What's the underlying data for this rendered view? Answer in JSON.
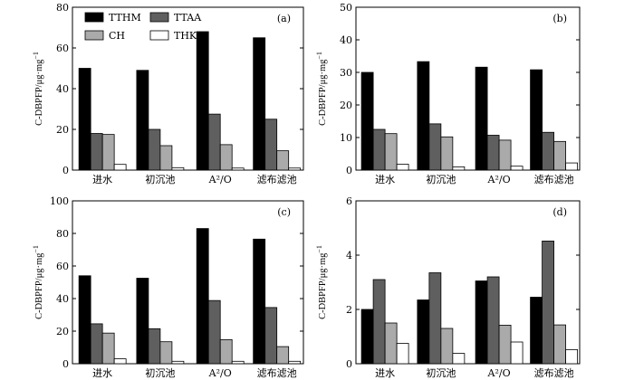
{
  "chart_data": [
    {
      "type": "bar",
      "panel_label": "(a)",
      "ylabel": "C-DBPFP/μg·mg",
      "ylabel_sup": "−1",
      "ylim": [
        0,
        80
      ],
      "yticks": [
        0,
        20,
        40,
        60,
        80
      ],
      "categories": [
        "进水",
        "初沉池",
        "A²/O",
        "滤布滤池"
      ],
      "series": [
        {
          "name": "TTHM",
          "values": [
            50,
            49,
            68,
            65
          ]
        },
        {
          "name": "TTAA",
          "values": [
            18,
            20,
            27.5,
            25
          ]
        },
        {
          "name": "CH",
          "values": [
            17.5,
            12,
            12.5,
            9.5
          ]
        },
        {
          "name": "THK",
          "values": [
            2.8,
            1.2,
            1.0,
            1.0
          ]
        }
      ],
      "legend": [
        "TTHM",
        "TTAA",
        "CH",
        "THK"
      ]
    },
    {
      "type": "bar",
      "panel_label": "(b)",
      "ylabel": "C-DBPFP/μg·mg",
      "ylabel_sup": "−1",
      "ylim": [
        0,
        50
      ],
      "yticks": [
        0,
        10,
        20,
        30,
        40,
        50
      ],
      "categories": [
        "进水",
        "初沉池",
        "A²/O",
        "滤布滤池"
      ],
      "series": [
        {
          "name": "TTHM",
          "values": [
            30,
            33.3,
            31.6,
            30.8
          ]
        },
        {
          "name": "TTAA",
          "values": [
            12.5,
            14.2,
            10.7,
            11.6
          ]
        },
        {
          "name": "CH",
          "values": [
            11.2,
            10.2,
            9.2,
            8.8
          ]
        },
        {
          "name": "THK",
          "values": [
            1.8,
            1.0,
            1.2,
            2.2
          ]
        }
      ]
    },
    {
      "type": "bar",
      "panel_label": "(c)",
      "ylabel": "C-DBPFP/μg·mg",
      "ylabel_sup": "−1",
      "ylim": [
        0,
        100
      ],
      "yticks": [
        0,
        20,
        40,
        60,
        80,
        100
      ],
      "categories": [
        "进水",
        "初沉池",
        "A²/O",
        "滤布滤池"
      ],
      "series": [
        {
          "name": "TTHM",
          "values": [
            54,
            52.5,
            83,
            76.5
          ]
        },
        {
          "name": "TTAA",
          "values": [
            24.5,
            21.5,
            38.8,
            34.5
          ]
        },
        {
          "name": "CH",
          "values": [
            18.8,
            13.5,
            14.8,
            10.5
          ]
        },
        {
          "name": "THK",
          "values": [
            3.0,
            1.5,
            1.5,
            1.5
          ]
        }
      ]
    },
    {
      "type": "bar",
      "panel_label": "(d)",
      "ylabel": "C-DBPFP/μg·mg",
      "ylabel_sup": "−1",
      "ylim": [
        0,
        6
      ],
      "yticks": [
        0,
        2,
        4,
        6
      ],
      "categories": [
        "进水",
        "初沉池",
        "A²/O",
        "滤布滤池"
      ],
      "series": [
        {
          "name": "TTHM",
          "values": [
            2.0,
            2.35,
            3.05,
            2.45
          ]
        },
        {
          "name": "TTAA",
          "values": [
            3.1,
            3.35,
            3.2,
            4.52
          ]
        },
        {
          "name": "CH",
          "values": [
            1.5,
            1.3,
            1.42,
            1.43
          ]
        },
        {
          "name": "THK",
          "values": [
            0.75,
            0.38,
            0.8,
            0.52
          ]
        }
      ]
    }
  ],
  "colors": {
    "TTHM": "#000000",
    "TTAA": "#5f5f5f",
    "CH": "#aaaaaa",
    "THK": "#ffffff",
    "stroke": "#000000"
  }
}
